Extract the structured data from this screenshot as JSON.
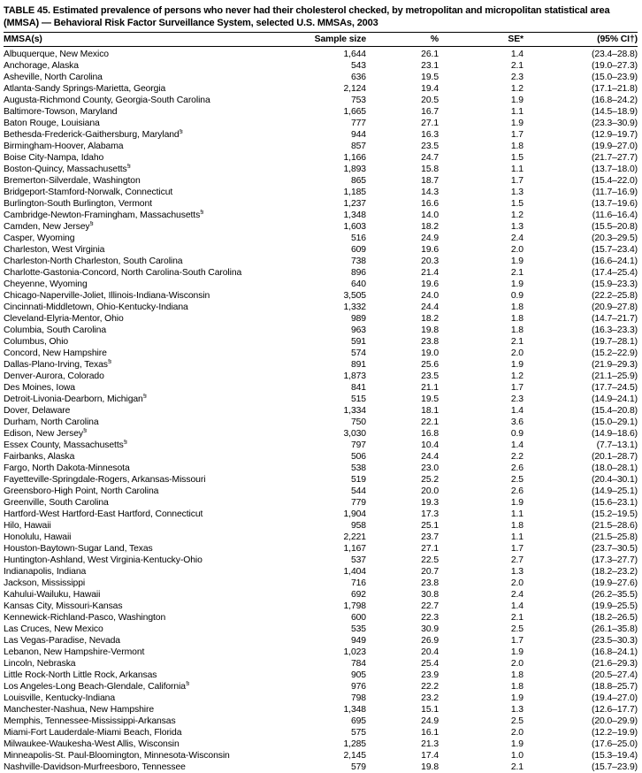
{
  "table": {
    "title": "TABLE 45. Estimated prevalence of persons who never had their cholesterol checked, by metropolitan and micropolitan statistical area (MMSA) — Behavioral Risk Factor Surveillance System, selected U.S. MMSAs, 2003",
    "columns": [
      "MMSA(s)",
      "Sample size",
      "%",
      "SE*",
      "(95% CI†)"
    ],
    "rows": [
      {
        "mmsa": "Albuquerque, New Mexico",
        "sup": "",
        "sample": "1,644",
        "pct": "26.1",
        "se": "1.4",
        "ci": "(23.4–28.8)"
      },
      {
        "mmsa": "Anchorage, Alaska",
        "sup": "",
        "sample": "543",
        "pct": "23.1",
        "se": "2.1",
        "ci": "(19.0–27.3)"
      },
      {
        "mmsa": "Asheville, North Carolina",
        "sup": "",
        "sample": "636",
        "pct": "19.5",
        "se": "2.3",
        "ci": "(15.0–23.9)"
      },
      {
        "mmsa": "Atlanta-Sandy Springs-Marietta, Georgia",
        "sup": "",
        "sample": "2,124",
        "pct": "19.4",
        "se": "1.2",
        "ci": "(17.1–21.8)"
      },
      {
        "mmsa": "Augusta-Richmond County, Georgia-South Carolina",
        "sup": "",
        "sample": "753",
        "pct": "20.5",
        "se": "1.9",
        "ci": "(16.8–24.2)"
      },
      {
        "mmsa": "Baltimore-Towson, Maryland",
        "sup": "",
        "sample": "1,665",
        "pct": "16.7",
        "se": "1.1",
        "ci": "(14.5–18.9)"
      },
      {
        "mmsa": "Baton Rouge, Louisiana",
        "sup": "",
        "sample": "777",
        "pct": "27.1",
        "se": "1.9",
        "ci": "(23.3–30.9)"
      },
      {
        "mmsa": "Bethesda-Frederick-Gaithersburg, Maryland",
        "sup": "§",
        "sample": "944",
        "pct": "16.3",
        "se": "1.7",
        "ci": "(12.9–19.7)"
      },
      {
        "mmsa": "Birmingham-Hoover, Alabama",
        "sup": "",
        "sample": "857",
        "pct": "23.5",
        "se": "1.8",
        "ci": "(19.9–27.0)"
      },
      {
        "mmsa": "Boise City-Nampa, Idaho",
        "sup": "",
        "sample": "1,166",
        "pct": "24.7",
        "se": "1.5",
        "ci": "(21.7–27.7)"
      },
      {
        "mmsa": "Boston-Quincy, Massachusetts",
        "sup": "§",
        "sample": "1,893",
        "pct": "15.8",
        "se": "1.1",
        "ci": "(13.7–18.0)"
      },
      {
        "mmsa": "Bremerton-Silverdale, Washington",
        "sup": "",
        "sample": "865",
        "pct": "18.7",
        "se": "1.7",
        "ci": "(15.4–22.0)"
      },
      {
        "mmsa": "Bridgeport-Stamford-Norwalk, Connecticut",
        "sup": "",
        "sample": "1,185",
        "pct": "14.3",
        "se": "1.3",
        "ci": "(11.7–16.9)"
      },
      {
        "mmsa": "Burlington-South Burlington, Vermont",
        "sup": "",
        "sample": "1,237",
        "pct": "16.6",
        "se": "1.5",
        "ci": "(13.7–19.6)"
      },
      {
        "mmsa": "Cambridge-Newton-Framingham, Massachusetts",
        "sup": "§",
        "sample": "1,348",
        "pct": "14.0",
        "se": "1.2",
        "ci": "(11.6–16.4)"
      },
      {
        "mmsa": "Camden, New Jersey",
        "sup": "§",
        "sample": "1,603",
        "pct": "18.2",
        "se": "1.3",
        "ci": "(15.5–20.8)"
      },
      {
        "mmsa": "Casper, Wyoming",
        "sup": "",
        "sample": "516",
        "pct": "24.9",
        "se": "2.4",
        "ci": "(20.3–29.5)"
      },
      {
        "mmsa": "Charleston, West Virginia",
        "sup": "",
        "sample": "609",
        "pct": "19.6",
        "se": "2.0",
        "ci": "(15.7–23.4)"
      },
      {
        "mmsa": "Charleston-North Charleston, South Carolina",
        "sup": "",
        "sample": "738",
        "pct": "20.3",
        "se": "1.9",
        "ci": "(16.6–24.1)"
      },
      {
        "mmsa": "Charlotte-Gastonia-Concord, North Carolina-South Carolina",
        "sup": "",
        "sample": "896",
        "pct": "21.4",
        "se": "2.1",
        "ci": "(17.4–25.4)"
      },
      {
        "mmsa": "Cheyenne, Wyoming",
        "sup": "",
        "sample": "640",
        "pct": "19.6",
        "se": "1.9",
        "ci": "(15.9–23.3)"
      },
      {
        "mmsa": "Chicago-Naperville-Joliet, Illinois-Indiana-Wisconsin",
        "sup": "",
        "sample": "3,505",
        "pct": "24.0",
        "se": "0.9",
        "ci": "(22.2–25.8)"
      },
      {
        "mmsa": "Cincinnati-Middletown, Ohio-Kentucky-Indiana",
        "sup": "",
        "sample": "1,332",
        "pct": "24.4",
        "se": "1.8",
        "ci": "(20.9–27.8)"
      },
      {
        "mmsa": "Cleveland-Elyria-Mentor, Ohio",
        "sup": "",
        "sample": "989",
        "pct": "18.2",
        "se": "1.8",
        "ci": "(14.7–21.7)"
      },
      {
        "mmsa": "Columbia, South Carolina",
        "sup": "",
        "sample": "963",
        "pct": "19.8",
        "se": "1.8",
        "ci": "(16.3–23.3)"
      },
      {
        "mmsa": "Columbus, Ohio",
        "sup": "",
        "sample": "591",
        "pct": "23.8",
        "se": "2.1",
        "ci": "(19.7–28.1)"
      },
      {
        "mmsa": "Concord, New Hampshire",
        "sup": "",
        "sample": "574",
        "pct": "19.0",
        "se": "2.0",
        "ci": "(15.2–22.9)"
      },
      {
        "mmsa": "Dallas-Plano-Irving, Texas",
        "sup": "§",
        "sample": "891",
        "pct": "25.6",
        "se": "1.9",
        "ci": "(21.9–29.3)"
      },
      {
        "mmsa": "Denver-Aurora, Colorado",
        "sup": "",
        "sample": "1,873",
        "pct": "23.5",
        "se": "1.2",
        "ci": "(21.1–25.9)"
      },
      {
        "mmsa": "Des Moines, Iowa",
        "sup": "",
        "sample": "841",
        "pct": "21.1",
        "se": "1.7",
        "ci": "(17.7–24.5)"
      },
      {
        "mmsa": "Detroit-Livonia-Dearborn, Michigan",
        "sup": "§",
        "sample": "515",
        "pct": "19.5",
        "se": "2.3",
        "ci": "(14.9–24.1)"
      },
      {
        "mmsa": "Dover, Delaware",
        "sup": "",
        "sample": "1,334",
        "pct": "18.1",
        "se": "1.4",
        "ci": "(15.4–20.8)"
      },
      {
        "mmsa": "Durham, North Carolina",
        "sup": "",
        "sample": "750",
        "pct": "22.1",
        "se": "3.6",
        "ci": "(15.0–29.1)"
      },
      {
        "mmsa": "Edison, New Jersey",
        "sup": "§",
        "sample": "3,030",
        "pct": "16.8",
        "se": "0.9",
        "ci": "(14.9–18.6)"
      },
      {
        "mmsa": "Essex County, Massachusetts",
        "sup": "§",
        "sample": "797",
        "pct": "10.4",
        "se": "1.4",
        "ci": "(7.7–13.1)"
      },
      {
        "mmsa": "Fairbanks, Alaska",
        "sup": "",
        "sample": "506",
        "pct": "24.4",
        "se": "2.2",
        "ci": "(20.1–28.7)"
      },
      {
        "mmsa": "Fargo, North Dakota-Minnesota",
        "sup": "",
        "sample": "538",
        "pct": "23.0",
        "se": "2.6",
        "ci": "(18.0–28.1)"
      },
      {
        "mmsa": "Fayetteville-Springdale-Rogers, Arkansas-Missouri",
        "sup": "",
        "sample": "519",
        "pct": "25.2",
        "se": "2.5",
        "ci": "(20.4–30.1)"
      },
      {
        "mmsa": "Greensboro-High Point, North Carolina",
        "sup": "",
        "sample": "544",
        "pct": "20.0",
        "se": "2.6",
        "ci": "(14.9–25.1)"
      },
      {
        "mmsa": "Greenville, South Carolina",
        "sup": "",
        "sample": "779",
        "pct": "19.3",
        "se": "1.9",
        "ci": "(15.6–23.1)"
      },
      {
        "mmsa": "Hartford-West Hartford-East Hartford, Connecticut",
        "sup": "",
        "sample": "1,904",
        "pct": "17.3",
        "se": "1.1",
        "ci": "(15.2–19.5)"
      },
      {
        "mmsa": "Hilo, Hawaii",
        "sup": "",
        "sample": "958",
        "pct": "25.1",
        "se": "1.8",
        "ci": "(21.5–28.6)"
      },
      {
        "mmsa": "Honolulu, Hawaii",
        "sup": "",
        "sample": "2,221",
        "pct": "23.7",
        "se": "1.1",
        "ci": "(21.5–25.8)"
      },
      {
        "mmsa": "Houston-Baytown-Sugar Land, Texas",
        "sup": "",
        "sample": "1,167",
        "pct": "27.1",
        "se": "1.7",
        "ci": "(23.7–30.5)"
      },
      {
        "mmsa": "Huntington-Ashland, West Virginia-Kentucky-Ohio",
        "sup": "",
        "sample": "537",
        "pct": "22.5",
        "se": "2.7",
        "ci": "(17.3–27.7)"
      },
      {
        "mmsa": "Indianapolis, Indiana",
        "sup": "",
        "sample": "1,404",
        "pct": "20.7",
        "se": "1.3",
        "ci": "(18.2–23.2)"
      },
      {
        "mmsa": "Jackson, Mississippi",
        "sup": "",
        "sample": "716",
        "pct": "23.8",
        "se": "2.0",
        "ci": "(19.9–27.6)"
      },
      {
        "mmsa": "Kahului-Wailuku, Hawaii",
        "sup": "",
        "sample": "692",
        "pct": "30.8",
        "se": "2.4",
        "ci": "(26.2–35.5)"
      },
      {
        "mmsa": "Kansas City, Missouri-Kansas",
        "sup": "",
        "sample": "1,798",
        "pct": "22.7",
        "se": "1.4",
        "ci": "(19.9–25.5)"
      },
      {
        "mmsa": "Kennewick-Richland-Pasco, Washington",
        "sup": "",
        "sample": "600",
        "pct": "22.3",
        "se": "2.1",
        "ci": "(18.2–26.5)"
      },
      {
        "mmsa": "Las Cruces, New Mexico",
        "sup": "",
        "sample": "535",
        "pct": "30.9",
        "se": "2.5",
        "ci": "(26.1–35.8)"
      },
      {
        "mmsa": "Las Vegas-Paradise, Nevada",
        "sup": "",
        "sample": "949",
        "pct": "26.9",
        "se": "1.7",
        "ci": "(23.5–30.3)"
      },
      {
        "mmsa": "Lebanon, New Hampshire-Vermont",
        "sup": "",
        "sample": "1,023",
        "pct": "20.4",
        "se": "1.9",
        "ci": "(16.8–24.1)"
      },
      {
        "mmsa": "Lincoln, Nebraska",
        "sup": "",
        "sample": "784",
        "pct": "25.4",
        "se": "2.0",
        "ci": "(21.6–29.3)"
      },
      {
        "mmsa": "Little Rock-North Little Rock, Arkansas",
        "sup": "",
        "sample": "905",
        "pct": "23.9",
        "se": "1.8",
        "ci": "(20.5–27.4)"
      },
      {
        "mmsa": "Los Angeles-Long Beach-Glendale, California",
        "sup": "§",
        "sample": "976",
        "pct": "22.2",
        "se": "1.8",
        "ci": "(18.8–25.7)"
      },
      {
        "mmsa": "Louisville, Kentucky-Indiana",
        "sup": "",
        "sample": "798",
        "pct": "23.2",
        "se": "1.9",
        "ci": "(19.4–27.0)"
      },
      {
        "mmsa": "Manchester-Nashua, New Hampshire",
        "sup": "",
        "sample": "1,348",
        "pct": "15.1",
        "se": "1.3",
        "ci": "(12.6–17.7)"
      },
      {
        "mmsa": "Memphis, Tennessee-Mississippi-Arkansas",
        "sup": "",
        "sample": "695",
        "pct": "24.9",
        "se": "2.5",
        "ci": "(20.0–29.9)"
      },
      {
        "mmsa": "Miami-Fort Lauderdale-Miami Beach, Florida",
        "sup": "",
        "sample": "575",
        "pct": "16.1",
        "se": "2.0",
        "ci": "(12.2–19.9)"
      },
      {
        "mmsa": "Milwaukee-Waukesha-West Allis, Wisconsin",
        "sup": "",
        "sample": "1,285",
        "pct": "21.3",
        "se": "1.9",
        "ci": "(17.6–25.0)"
      },
      {
        "mmsa": "Minneapolis-St. Paul-Bloomington, Minnesota-Wisconsin",
        "sup": "",
        "sample": "2,145",
        "pct": "17.4",
        "se": "1.0",
        "ci": "(15.3–19.4)"
      },
      {
        "mmsa": "Nashville-Davidson-Murfreesboro, Tennessee",
        "sup": "",
        "sample": "579",
        "pct": "19.8",
        "se": "2.1",
        "ci": "(15.7–23.9)"
      }
    ]
  }
}
